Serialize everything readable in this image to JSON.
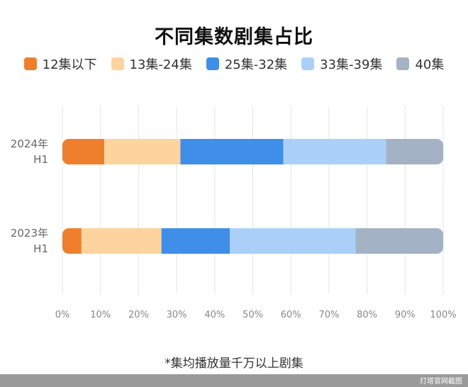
{
  "chart_data": {
    "type": "bar",
    "orientation": "horizontal",
    "stacked": true,
    "title": "不同集数剧集占比",
    "categories": [
      "2024年\nH1",
      "2023年\nH1"
    ],
    "series": [
      {
        "name": "12集以下",
        "values": [
          11,
          5
        ],
        "color": "#f07f2d"
      },
      {
        "name": "13集-24集",
        "values": [
          20,
          21
        ],
        "color": "#fdd49e"
      },
      {
        "name": "25集-32集",
        "values": [
          27,
          18
        ],
        "color": "#3f8ee8"
      },
      {
        "name": "33集-39集",
        "values": [
          27,
          33
        ],
        "color": "#aad0fa"
      },
      {
        "name": "40集",
        "values": [
          15,
          23
        ],
        "color": "#a3b3c5"
      }
    ],
    "xlim": [
      0,
      100
    ],
    "x_ticks": [
      "0%",
      "10%",
      "20%",
      "30%",
      "40%",
      "50%",
      "60%",
      "70%",
      "80%",
      "90%",
      "100%"
    ],
    "grid": true,
    "legend_position": "top"
  },
  "footnote": "*集均播放量千万以上剧集",
  "source_credit": "灯塔官网截图"
}
